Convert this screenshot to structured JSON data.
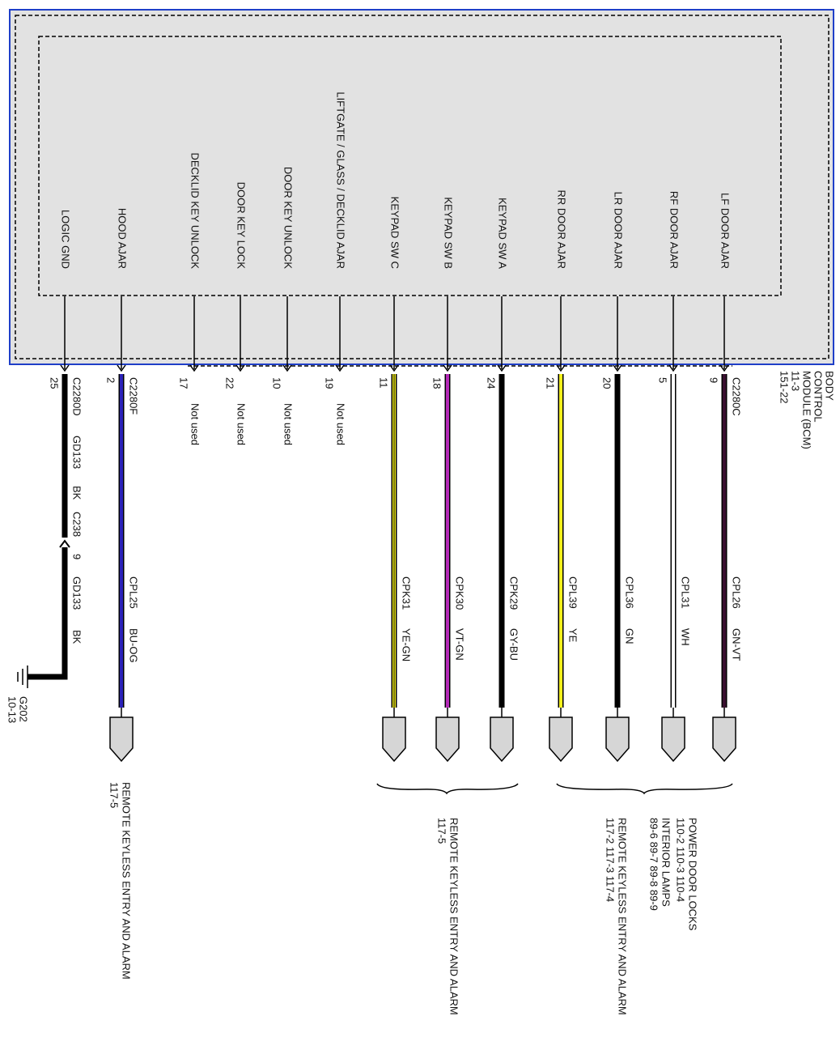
{
  "module": {
    "lines": [
      "BODY",
      "CONTROL",
      "MODULE (BCM)",
      "11-3",
      "151-22"
    ]
  },
  "pins": [
    {
      "label": "LOGIC GND",
      "number": "25",
      "connector": "C2280D"
    },
    {
      "label": "HOOD AJAR",
      "number": "2",
      "connector": "C2280F",
      "circuit": "CPL25",
      "color": "BU-OG",
      "wire_color": "#2b22b8"
    },
    {
      "label": "DECKLID KEY UNLOCK",
      "number": "17",
      "note": "Not used"
    },
    {
      "label": "DOOR KEY LOCK",
      "number": "22",
      "note": "Not used"
    },
    {
      "label": "DOOR KEY UNLOCK",
      "number": "10",
      "note": "Not used"
    },
    {
      "label": "LIFTGATE / GLASS / DECKLID AJAR",
      "number": "19",
      "note": "Not used"
    },
    {
      "label": "KEYPAD SW C",
      "number": "11",
      "circuit": "CPK31",
      "color": "YE-GN",
      "wire_color": "#f2ee1a"
    },
    {
      "label": "KEYPAD SW B",
      "number": "18",
      "circuit": "CPK30",
      "color": "VT-GN",
      "wire_color": "#b52ab8"
    },
    {
      "label": "KEYPAD SW A",
      "number": "24",
      "circuit": "CPK29",
      "color": "GY-BU",
      "wire_color": "#000000"
    },
    {
      "label": "RR DOOR AJAR",
      "number": "21",
      "circuit": "CPL39",
      "color": "YE",
      "wire_color": "#f4f01c"
    },
    {
      "label": "LR DOOR AJAR",
      "number": "20",
      "circuit": "CPL36",
      "color": "GN",
      "wire_color": "#000000"
    },
    {
      "label": "RF DOOR AJAR",
      "number": "5",
      "circuit": "CPL31",
      "color": "WH",
      "wire_color": "#ffffff"
    },
    {
      "label": "LF DOOR AJAR",
      "number": "9",
      "connector": "C2280C",
      "circuit": "CPL26",
      "color": "GN-VT",
      "wire_color": "#3a1030"
    }
  ],
  "ground_wire": {
    "labels": [
      "GD133",
      "BK",
      "C238",
      "9",
      "GD133",
      "BK"
    ]
  },
  "ground": {
    "lines": [
      "G202",
      "10-13"
    ]
  },
  "destinations": [
    {
      "lines": [
        "REMOTE KEYLESS ENTRY AND ALARM",
        "117-5"
      ]
    },
    {
      "lines": [
        "REMOTE KEYLESS ENTRY AND ALARM",
        "117-5"
      ]
    },
    {
      "lines": [
        "POWER DOOR LOCKS",
        "110-2    110-3    110-4"
      ]
    },
    {
      "lines": [
        "INTERIOR LAMPS",
        "89-6      89-7      89-8      89-9"
      ]
    },
    {
      "lines": [
        "REMOTE KEYLESS ENTRY AND ALARM",
        "117-2    117-3    117-4"
      ]
    }
  ]
}
